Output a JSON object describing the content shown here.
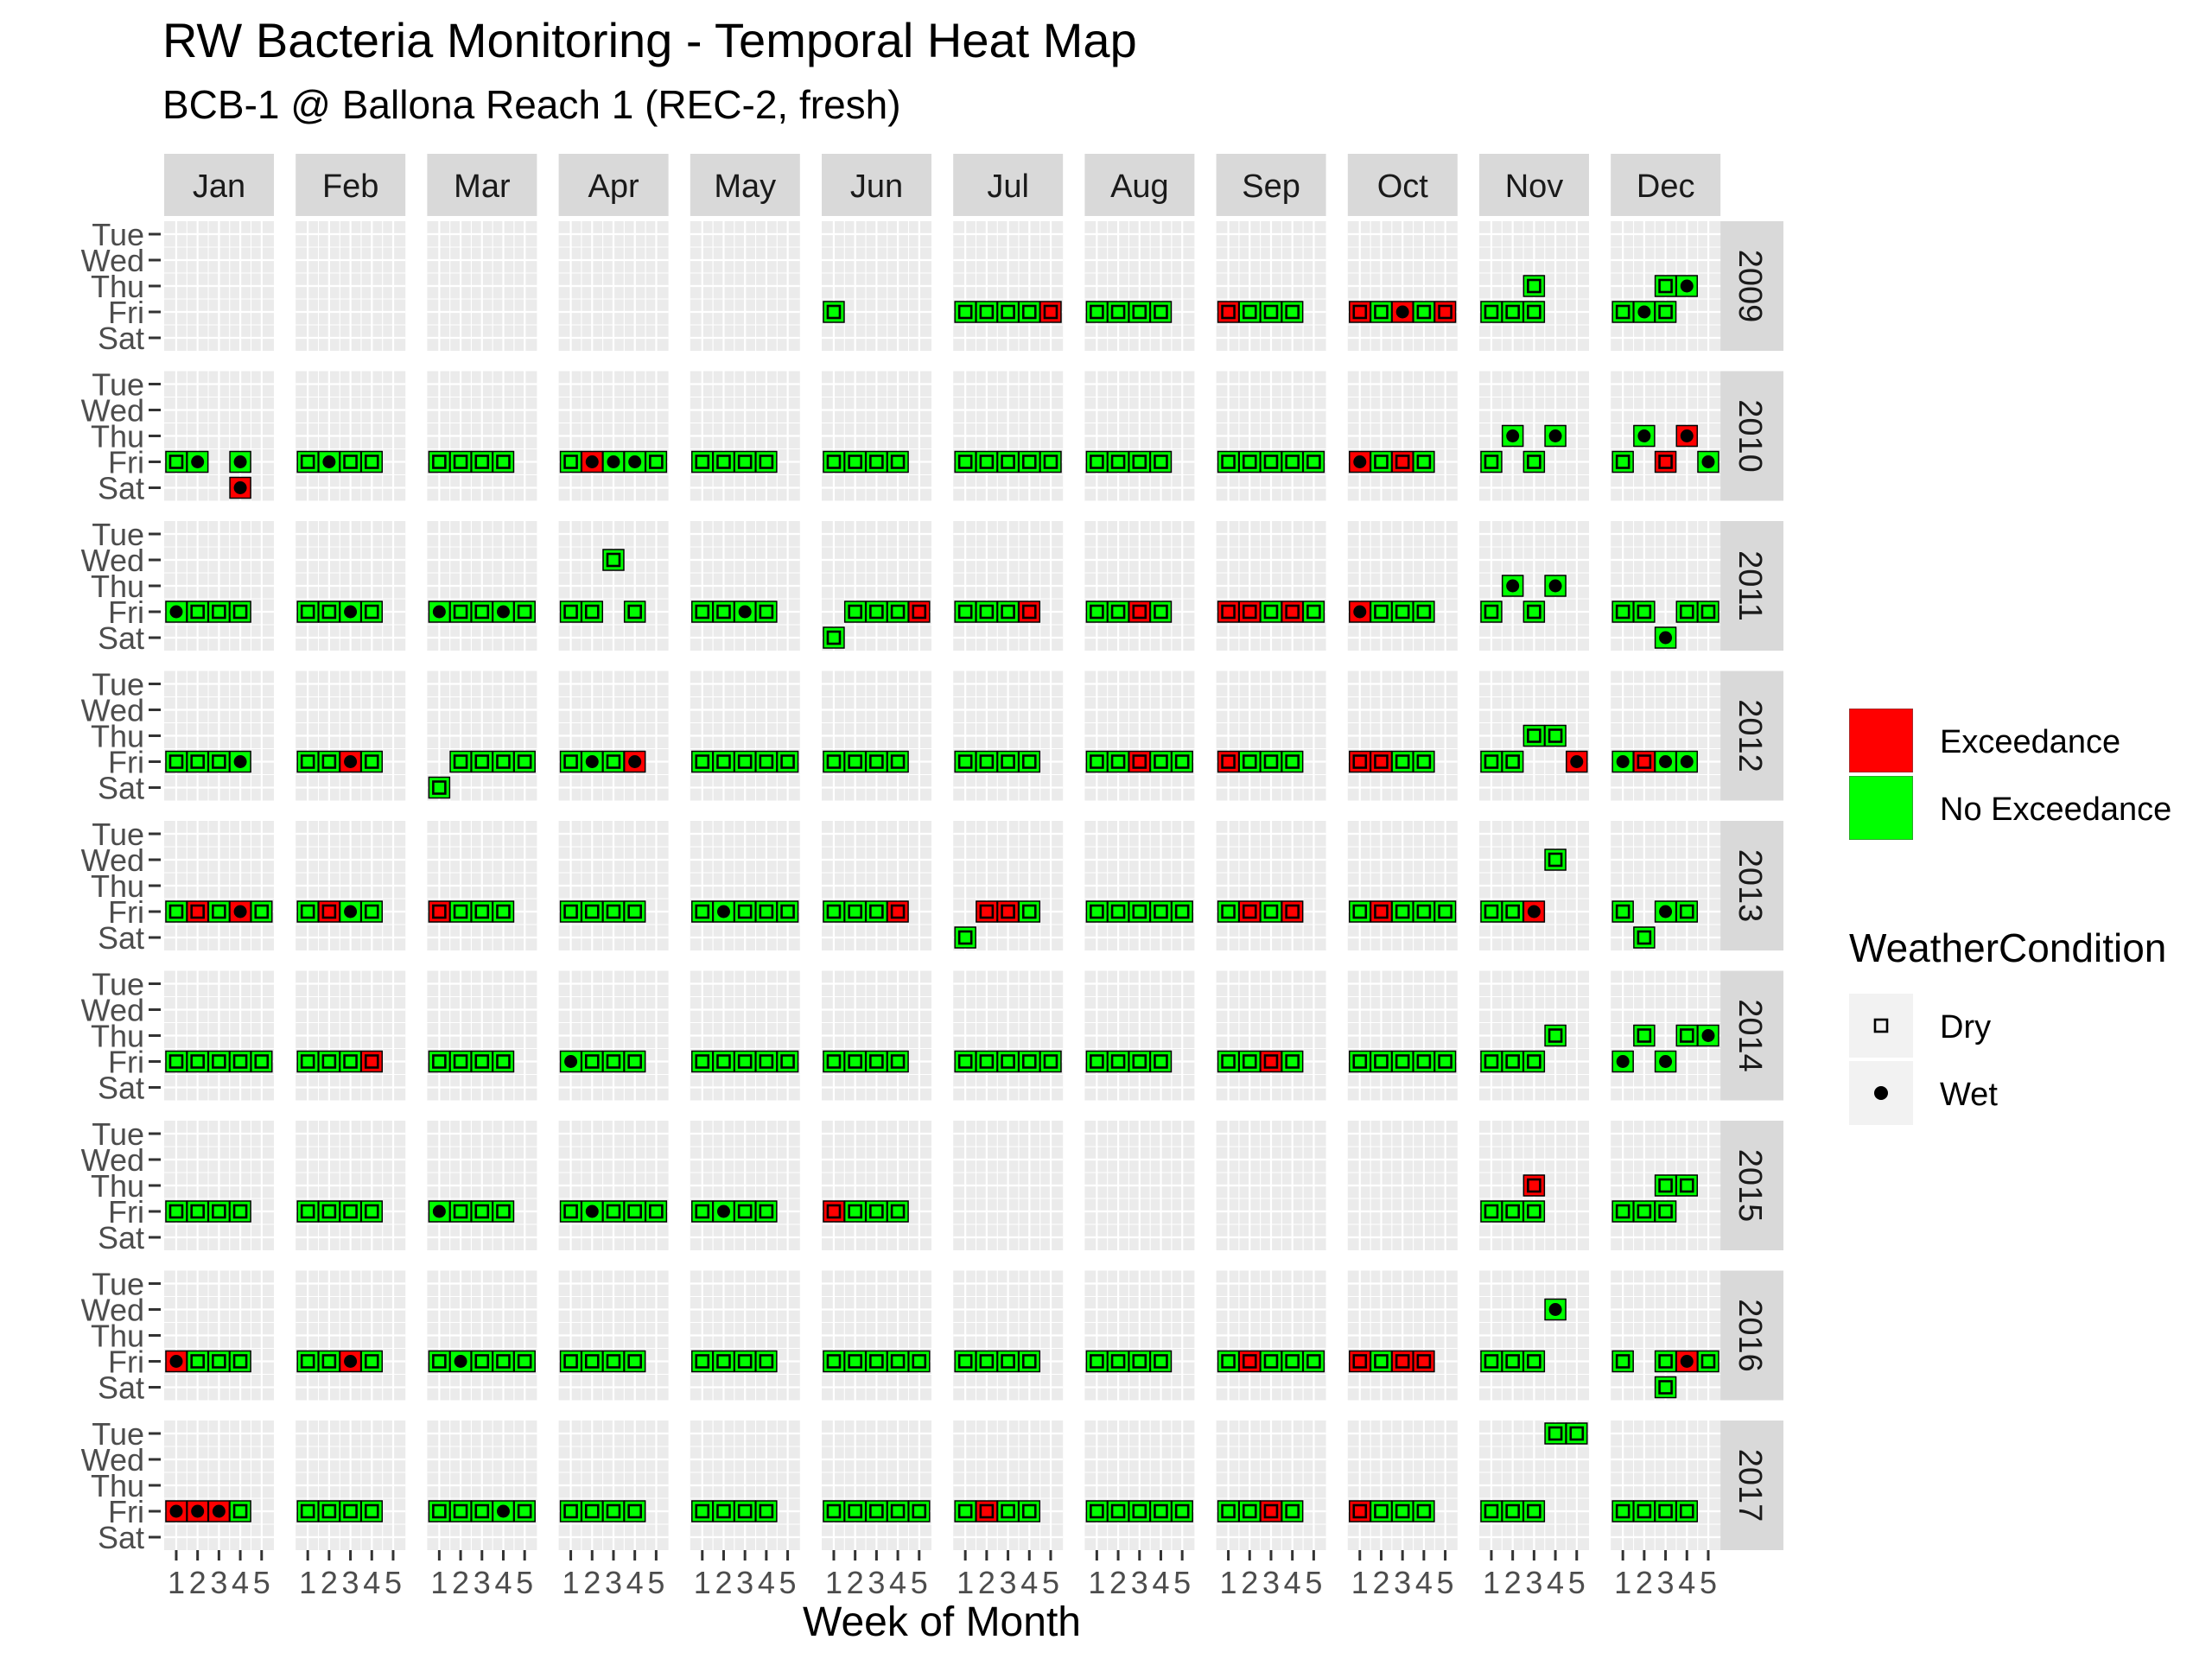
{
  "title": "RW Bacteria Monitoring - Temporal Heat Map",
  "subtitle": "BCB-1 @ Ballona Reach 1 (REC-2, fresh)",
  "chart_data": {
    "type": "heatmap",
    "xlabel": "Week of Month",
    "ylabel": "",
    "months": [
      "Jan",
      "Feb",
      "Mar",
      "Apr",
      "May",
      "Jun",
      "Jul",
      "Aug",
      "Sep",
      "Oct",
      "Nov",
      "Dec"
    ],
    "years": [
      "2009",
      "2010",
      "2011",
      "2012",
      "2013",
      "2014",
      "2015",
      "2016",
      "2017"
    ],
    "x_ticks": [
      "1",
      "2",
      "3",
      "4",
      "5"
    ],
    "y_ticks": [
      "Tue",
      "Wed",
      "Thu",
      "Fri",
      "Sat"
    ],
    "legend": {
      "fill_items": [
        {
          "label": "Exceedance",
          "color": "#ff0000"
        },
        {
          "label": "No Exceedance",
          "color": "#00ff00"
        }
      ],
      "shape_title": "WeatherCondition",
      "shape_items": [
        {
          "label": "Dry",
          "shape": "open-square"
        },
        {
          "label": "Wet",
          "shape": "filled-circle"
        }
      ]
    },
    "encoding_note_day_codes": "Tu=Tue, W=Wed, Th=Thu, F=Fri, S=Sat; code = day + slot(1-5) + status(g=no exceedance, r=exceedance) + weather(d=dry, w=wet)",
    "cells": {
      "2009": {
        "Jun": [
          "F1gd"
        ],
        "Jul": [
          "F1gd",
          "F2gd",
          "F3gd",
          "F4gd",
          "F5rd"
        ],
        "Aug": [
          "F1gd",
          "F2gd",
          "F3gd",
          "F4gd"
        ],
        "Sep": [
          "F1rd",
          "F2gd",
          "F3gd",
          "F4gd"
        ],
        "Oct": [
          "F1rd",
          "F2gd",
          "F3rw",
          "F4gd",
          "F5rd"
        ],
        "Nov": [
          "F1gd",
          "F2gd",
          "F3gd",
          "Th3gd"
        ],
        "Dec": [
          "F1gd",
          "F2gw",
          "F3gd",
          "Th3gd",
          "Th4gw"
        ]
      },
      "2010": {
        "Jan": [
          "F1gd",
          "F2gw",
          "F4gw",
          "S4rw"
        ],
        "Feb": [
          "F1gd",
          "F2gw",
          "F3gd",
          "F4gd"
        ],
        "Mar": [
          "F1gd",
          "F2gd",
          "F3gd",
          "F4gd"
        ],
        "Apr": [
          "F1gd",
          "F2rw",
          "F3gw",
          "F4gw",
          "F5gd"
        ],
        "May": [
          "F1gd",
          "F2gd",
          "F3gd",
          "F4gd"
        ],
        "Jun": [
          "F1gd",
          "F2gd",
          "F3gd",
          "F4gd"
        ],
        "Jul": [
          "F1gd",
          "F2gd",
          "F3gd",
          "F4gd",
          "F5gd"
        ],
        "Aug": [
          "F1gd",
          "F2gd",
          "F3gd",
          "F4gd"
        ],
        "Sep": [
          "F1gd",
          "F2gd",
          "F3gd",
          "F4gd",
          "F5gd"
        ],
        "Oct": [
          "F1rw",
          "F2gd",
          "F3rd",
          "F4gd"
        ],
        "Nov": [
          "F1gd",
          "Th2gw",
          "F3gd",
          "Th4gw"
        ],
        "Dec": [
          "F1gd",
          "Th2gw",
          "F3rd",
          "Th4rw",
          "F5gw"
        ]
      },
      "2011": {
        "Jan": [
          "F1gw",
          "F2gd",
          "F3gd",
          "F4gd"
        ],
        "Feb": [
          "F1gd",
          "F2gd",
          "F3gw",
          "F4gd"
        ],
        "Mar": [
          "F1gw",
          "F2gd",
          "F3gd",
          "F4gw",
          "F5gd"
        ],
        "Apr": [
          "F1gd",
          "F2gd",
          "W3gd",
          "F4gd"
        ],
        "May": [
          "F1gd",
          "F2gd",
          "F3gw",
          "F4gd"
        ],
        "Jun": [
          "S1gd",
          "F2gd",
          "F3gd",
          "F4gd",
          "F5rd"
        ],
        "Jul": [
          "F1gd",
          "F2gd",
          "F3gd",
          "F4rd"
        ],
        "Aug": [
          "F1gd",
          "F2gd",
          "F3rd",
          "F4gd"
        ],
        "Sep": [
          "F1rd",
          "F2rd",
          "F3gd",
          "F4rd",
          "F5gd"
        ],
        "Oct": [
          "F1rw",
          "F2gd",
          "F3gd",
          "F4gd"
        ],
        "Nov": [
          "F1gd",
          "Th2gw",
          "F3gd",
          "Th4gw"
        ],
        "Dec": [
          "F1gd",
          "F2gd",
          "S3gw",
          "F4gd",
          "F5gd"
        ]
      },
      "2012": {
        "Jan": [
          "F1gd",
          "F2gd",
          "F3gd",
          "F4gw"
        ],
        "Feb": [
          "F1gd",
          "F2gd",
          "F3rw",
          "F4gd"
        ],
        "Mar": [
          "S1gd",
          "F2gd",
          "F3gd",
          "F4gd",
          "F5gd"
        ],
        "Apr": [
          "F1gd",
          "F2gw",
          "F3gd",
          "F4rw"
        ],
        "May": [
          "F1gd",
          "F2gd",
          "F3gd",
          "F4gd",
          "F5gd"
        ],
        "Jun": [
          "F1gd",
          "F2gd",
          "F3gd",
          "F4gd"
        ],
        "Jul": [
          "F1gd",
          "F2gd",
          "F3gd",
          "F4gd"
        ],
        "Aug": [
          "F1gd",
          "F2gd",
          "F3rd",
          "F4gd",
          "F5gd"
        ],
        "Sep": [
          "F1rd",
          "F2gd",
          "F3gd",
          "F4gd"
        ],
        "Oct": [
          "F1rd",
          "F2rd",
          "F3gd",
          "F4gd"
        ],
        "Nov": [
          "F1gd",
          "F2gd",
          "Th3gd",
          "Th4gd",
          "F5rw"
        ],
        "Dec": [
          "F1gw",
          "F2rd",
          "F3gw",
          "F4gw"
        ]
      },
      "2013": {
        "Jan": [
          "F1gd",
          "F2rd",
          "F3gd",
          "F4rw",
          "F5gd"
        ],
        "Feb": [
          "F1gd",
          "F2rd",
          "F3gw",
          "F4gd"
        ],
        "Mar": [
          "F1rd",
          "F2gd",
          "F3gd",
          "F4gd"
        ],
        "Apr": [
          "F1gd",
          "F2gd",
          "F3gd",
          "F4gd"
        ],
        "May": [
          "F1gd",
          "F2gw",
          "F3gd",
          "F4gd",
          "F5gd"
        ],
        "Jun": [
          "F1gd",
          "F2gd",
          "F3gd",
          "F4rd"
        ],
        "Jul": [
          "S1gd",
          "F2rd",
          "F3rd",
          "F4gd"
        ],
        "Aug": [
          "F1gd",
          "F2gd",
          "F3gd",
          "F4gd",
          "F5gd"
        ],
        "Sep": [
          "F1gd",
          "F2rd",
          "F3gd",
          "F4rd"
        ],
        "Oct": [
          "F1gd",
          "F2rd",
          "F3gd",
          "F4gd",
          "F5gd"
        ],
        "Nov": [
          "F1gd",
          "F2gd",
          "F3rw",
          "W4gd"
        ],
        "Dec": [
          "F1gd",
          "S2gd",
          "F3gw",
          "F4gd"
        ]
      },
      "2014": {
        "Jan": [
          "F1gd",
          "F2gd",
          "F3gd",
          "F4gd",
          "F5gd"
        ],
        "Feb": [
          "F1gd",
          "F2gd",
          "F3gd",
          "F4rd"
        ],
        "Mar": [
          "F1gd",
          "F2gd",
          "F3gd",
          "F4gd"
        ],
        "Apr": [
          "F1gw",
          "F2gd",
          "F3gd",
          "F4gd"
        ],
        "May": [
          "F1gd",
          "F2gd",
          "F3gd",
          "F4gd",
          "F5gd"
        ],
        "Jun": [
          "F1gd",
          "F2gd",
          "F3gd",
          "F4gd"
        ],
        "Jul": [
          "F1gd",
          "F2gd",
          "F3gd",
          "F4gd",
          "F5gd"
        ],
        "Aug": [
          "F1gd",
          "F2gd",
          "F3gd",
          "F4gd"
        ],
        "Sep": [
          "F1gd",
          "F2gd",
          "F3rd",
          "F4gd"
        ],
        "Oct": [
          "F1gd",
          "F2gd",
          "F3gd",
          "F4gd",
          "F5gd"
        ],
        "Nov": [
          "F1gd",
          "F2gd",
          "F3gd",
          "Th4gd"
        ],
        "Dec": [
          "F1gw",
          "Th2gd",
          "F3gw",
          "Th4gd",
          "Th5gw"
        ]
      },
      "2015": {
        "Jan": [
          "F1gd",
          "F2gd",
          "F3gd",
          "F4gd"
        ],
        "Feb": [
          "F1gd",
          "F2gd",
          "F3gd",
          "F4gd"
        ],
        "Mar": [
          "F1gw",
          "F2gd",
          "F3gd",
          "F4gd"
        ],
        "Apr": [
          "F1gd",
          "F2gw",
          "F3gd",
          "F4gd",
          "F5gd"
        ],
        "May": [
          "F1gd",
          "F2gw",
          "F3gd",
          "F4gd"
        ],
        "Jun": [
          "F1rd",
          "F2gd",
          "F3gd",
          "F4gd"
        ],
        "Nov": [
          "F1gd",
          "F2gd",
          "F3gd",
          "Th3rd"
        ],
        "Dec": [
          "F1gd",
          "F2gd",
          "F3gd",
          "Th3gd",
          "Th4gd"
        ]
      },
      "2016": {
        "Jan": [
          "F1rw",
          "F2gd",
          "F3gd",
          "F4gd"
        ],
        "Feb": [
          "F1gd",
          "F2gd",
          "F3rw",
          "F4gd"
        ],
        "Mar": [
          "F1gd",
          "F2gw",
          "F3gd",
          "F4gd",
          "F5gd"
        ],
        "Apr": [
          "F1gd",
          "F2gd",
          "F3gd",
          "F4gd"
        ],
        "May": [
          "F1gd",
          "F2gd",
          "F3gd",
          "F4gd"
        ],
        "Jun": [
          "F1gd",
          "F2gd",
          "F3gd",
          "F4gd",
          "F5gd"
        ],
        "Jul": [
          "F1gd",
          "F2gd",
          "F3gd",
          "F4gd"
        ],
        "Aug": [
          "F1gd",
          "F2gd",
          "F3gd",
          "F4gd"
        ],
        "Sep": [
          "F1gd",
          "F2rd",
          "F3gd",
          "F4gd",
          "F5gd"
        ],
        "Oct": [
          "F1rd",
          "F2gd",
          "F3rd",
          "F4rd"
        ],
        "Nov": [
          "F1gd",
          "F2gd",
          "F3gd",
          "W4gw"
        ],
        "Dec": [
          "F1gd",
          "F3gd",
          "S3gd",
          "F4rw",
          "F5gd"
        ]
      },
      "2017": {
        "Jan": [
          "F1rw",
          "F2rw",
          "F3rw",
          "F4gd"
        ],
        "Feb": [
          "F1gd",
          "F2gd",
          "F3gd",
          "F4gd"
        ],
        "Mar": [
          "F1gd",
          "F2gd",
          "F3gd",
          "F4gw",
          "F5gd"
        ],
        "Apr": [
          "F1gd",
          "F2gd",
          "F3gd",
          "F4gd"
        ],
        "May": [
          "F1gd",
          "F2gd",
          "F3gd",
          "F4gd"
        ],
        "Jun": [
          "F1gd",
          "F2gd",
          "F3gd",
          "F4gd",
          "F5gd"
        ],
        "Jul": [
          "F1gd",
          "F2rd",
          "F3gd",
          "F4gd"
        ],
        "Aug": [
          "F1gd",
          "F2gd",
          "F3gd",
          "F4gd",
          "F5gd"
        ],
        "Sep": [
          "F1gd",
          "F2gd",
          "F3rd",
          "F4gd"
        ],
        "Oct": [
          "F1rd",
          "F2gd",
          "F3gd",
          "F4gd"
        ],
        "Nov": [
          "F1gd",
          "F2gd",
          "F3gd",
          "Tu4gd",
          "Tu5gd"
        ],
        "Dec": [
          "F1gd",
          "F2gd",
          "F3gd",
          "F4gd"
        ]
      }
    },
    "colors": {
      "exceedance": "#ff0000",
      "no_exceedance": "#00ff00",
      "panel_bg": "#ebebeb",
      "strip_bg": "#d9d9d9",
      "grid": "#ffffff"
    }
  }
}
